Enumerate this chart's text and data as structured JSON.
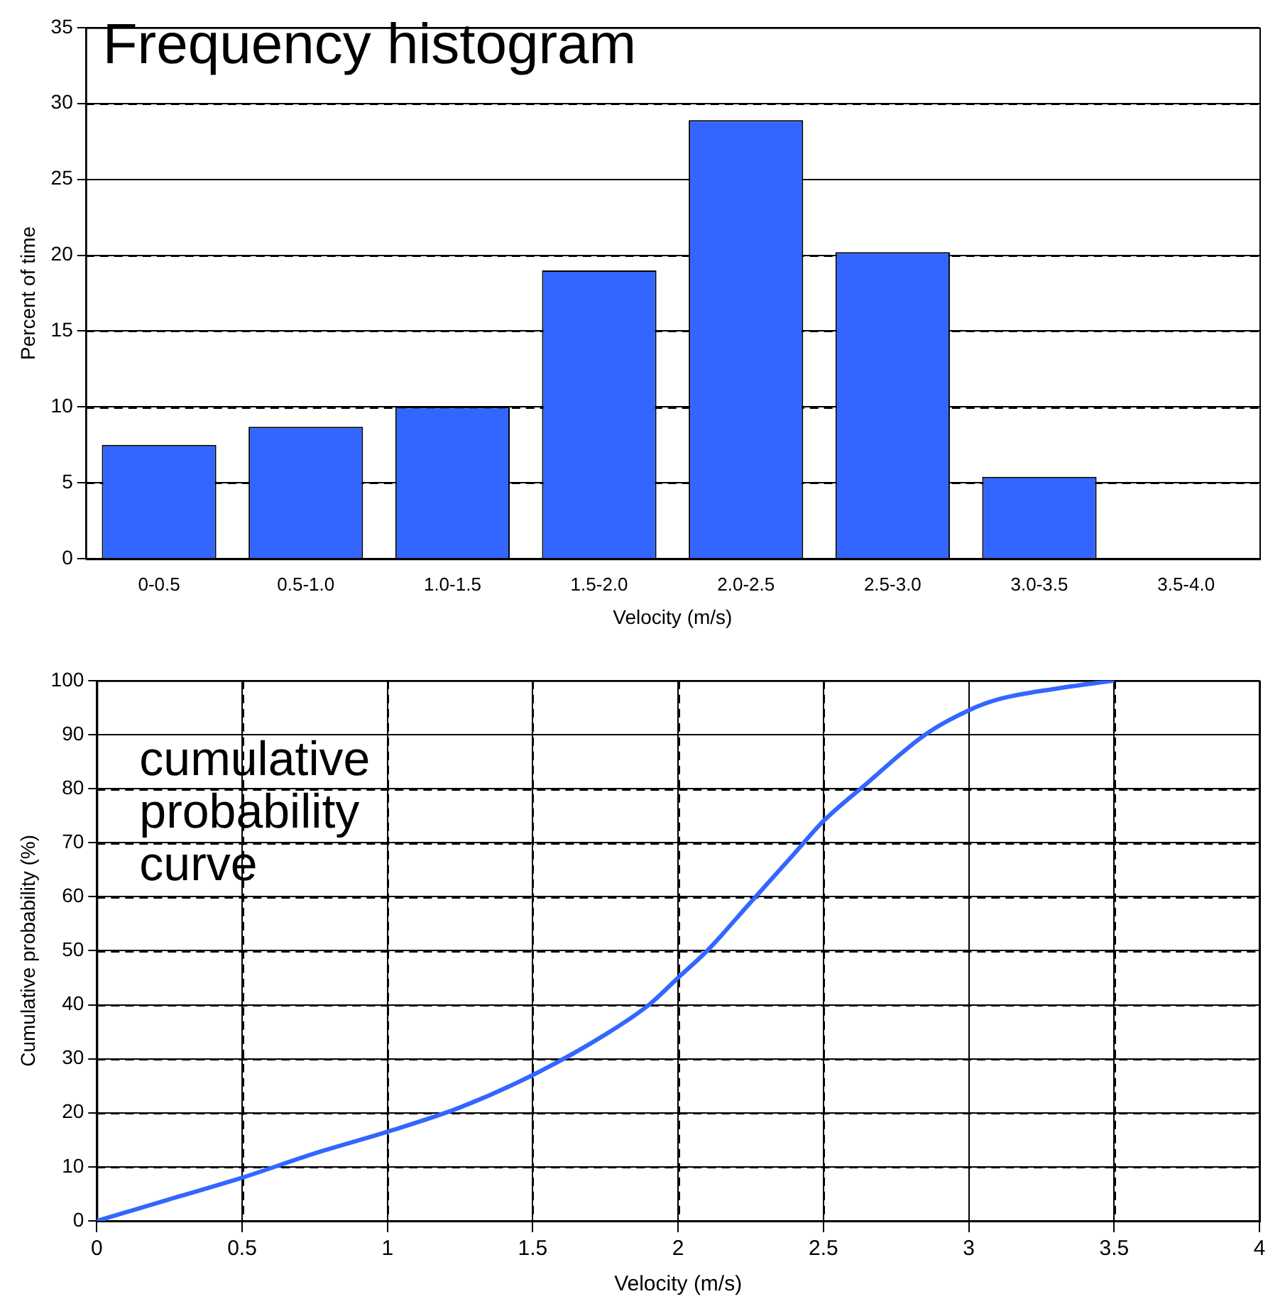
{
  "chart_data": [
    {
      "type": "bar",
      "title": "Frequency histogram",
      "xlabel": "Velocity (m/s)",
      "ylabel": "Percent of time",
      "categories": [
        "0-0.5",
        "0.5-1.0",
        "1.0-1.5",
        "1.5-2.0",
        "2.0-2.5",
        "2.5-3.0",
        "3.0-3.5",
        "3.5-4.0"
      ],
      "values": [
        7.5,
        8.7,
        10,
        19,
        28.9,
        20.2,
        5.4,
        0
      ],
      "color": "#3366ff",
      "ylim": [
        0,
        35
      ],
      "yticks": [
        0,
        5,
        10,
        15,
        20,
        25,
        30,
        35
      ],
      "grid": "y",
      "legend": false
    },
    {
      "type": "line",
      "xlabel": "Velocity (m/s)",
      "ylabel": "Cumulative probability (%)",
      "annotations": [
        "cumulative probability curve"
      ],
      "x": [
        0,
        0.25,
        0.5,
        0.75,
        1,
        1.25,
        1.5,
        1.75,
        1.9,
        2,
        2.1,
        2.25,
        2.4,
        2.5,
        2.65,
        2.85,
        3,
        3.1,
        3.3,
        3.5
      ],
      "values": [
        0,
        4,
        8,
        12.5,
        16.5,
        21,
        27,
        34.5,
        40,
        45,
        50,
        59,
        68,
        74,
        81,
        90,
        94.5,
        96.5,
        98.5,
        100
      ],
      "color": "#3366ff",
      "marker": "none",
      "line_style": "solid",
      "xlim": [
        0,
        4
      ],
      "xticks": [
        0,
        0.5,
        1,
        1.5,
        2,
        2.5,
        3,
        3.5,
        4
      ],
      "ylim": [
        0,
        100
      ],
      "yticks": [
        0,
        10,
        20,
        30,
        40,
        50,
        60,
        70,
        80,
        90,
        100
      ],
      "grid": true,
      "legend": false
    }
  ]
}
